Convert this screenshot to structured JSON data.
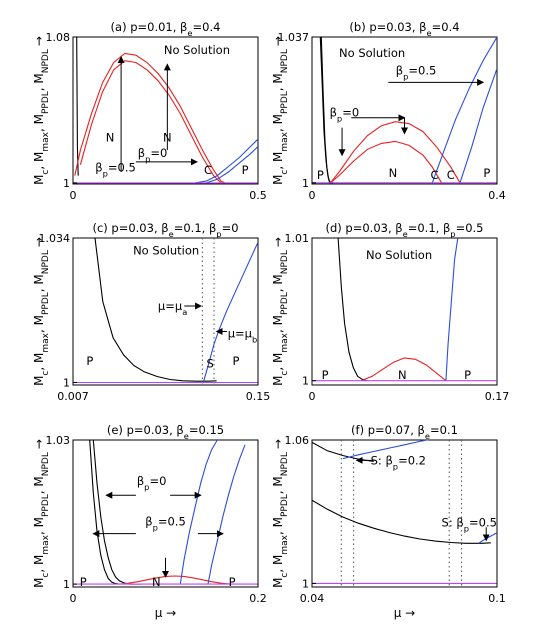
{
  "figure": {
    "ylabel_text": "M",
    "ylabel_subs": [
      "c",
      "max",
      "PPDL",
      "NPDL"
    ],
    "ylabel_arrow": "→",
    "colors": {
      "axis": "#000000",
      "black": "#000000",
      "red": "#e8201f",
      "blue": "#2b4de0",
      "magenta": "#c040ff"
    }
  },
  "chart_data": [
    {
      "type": "line",
      "panel": "a",
      "title": "(a) p=0.01, β_e=0.4",
      "xlabel": "",
      "xlim": [
        0,
        0.5
      ],
      "ylim": [
        0.9994,
        1.08
      ],
      "xticks": [
        "0",
        "0.5"
      ],
      "yticks": [
        "1",
        "1.08"
      ],
      "series": [
        {
          "color": "black",
          "x": [
            0.01,
            0.012,
            0.014
          ],
          "y": [
            1.08,
            1.02,
            1.004
          ]
        },
        {
          "color": "red",
          "x": [
            0.005,
            0.02,
            0.05,
            0.08,
            0.11,
            0.14,
            0.17,
            0.2,
            0.23,
            0.26,
            0.29,
            0.32,
            0.35,
            0.38,
            0.4,
            0.41
          ],
          "y": [
            1.004,
            1.018,
            1.038,
            1.055,
            1.066,
            1.071,
            1.07,
            1.066,
            1.06,
            1.052,
            1.042,
            1.03,
            1.018,
            1.007,
            1.001,
            1.0
          ]
        },
        {
          "color": "red",
          "x": [
            0.02,
            0.05,
            0.08,
            0.11,
            0.14,
            0.17,
            0.2,
            0.23,
            0.26,
            0.29,
            0.32,
            0.35,
            0.38,
            0.4
          ],
          "y": [
            1.01,
            1.032,
            1.05,
            1.062,
            1.067,
            1.066,
            1.062,
            1.056,
            1.048,
            1.038,
            1.026,
            1.014,
            1.004,
            1.0
          ]
        },
        {
          "color": "blue",
          "x": [
            0.33,
            0.36,
            0.39,
            0.42,
            0.45,
            0.48,
            0.5
          ],
          "y": [
            1.0,
            1.001,
            1.004,
            1.009,
            1.014,
            1.02,
            1.024
          ]
        },
        {
          "color": "blue",
          "x": [
            0.36,
            0.39,
            0.42,
            0.45,
            0.48,
            0.5
          ],
          "y": [
            1.0,
            1.002,
            1.006,
            1.011,
            1.016,
            1.02
          ]
        },
        {
          "color": "magenta",
          "x": [
            0,
            0.5
          ],
          "y": [
            1.0,
            1.0
          ]
        }
      ],
      "annotations": [
        {
          "text": "No Solution",
          "x": 0.335,
          "y": 1.073
        },
        {
          "text": "N",
          "x": 0.1,
          "y": 1.025
        },
        {
          "text": "N",
          "x": 0.255,
          "y": 1.025
        },
        {
          "text": "C",
          "x": 0.365,
          "y": 1.007
        },
        {
          "text": "P",
          "x": 0.465,
          "y": 1.007
        },
        {
          "text": "β_p=0.5",
          "x": 0.115,
          "y": 1.0085
        },
        {
          "text": "β_p=0",
          "x": 0.215,
          "y": 1.0165
        }
      ],
      "arrows": [
        {
          "x1": 0.13,
          "y1": 1.006,
          "x2": 0.13,
          "y2": 1.069
        },
        {
          "x1": 0.255,
          "y1": 1.018,
          "x2": 0.255,
          "y2": 1.065
        },
        {
          "x1": 0.17,
          "y1": 1.0115,
          "x2": 0.335,
          "y2": 1.0115
        }
      ]
    },
    {
      "type": "line",
      "panel": "b",
      "title": "(b) p=0.03, β_e=0.4",
      "xlabel": "",
      "xlim": [
        0,
        0.4
      ],
      "ylim": [
        0.9997,
        1.037
      ],
      "xticks": [
        "0",
        "0.4"
      ],
      "yticks": [
        "1",
        "1.037"
      ],
      "series": [
        {
          "color": "black",
          "x": [
            0.018,
            0.022,
            0.026,
            0.03,
            0.034,
            0.038,
            0.042,
            0.046
          ],
          "y": [
            1.037,
            1.025,
            1.013,
            1.006,
            1.002,
            1.0,
            1.0,
            1.0
          ]
        },
        {
          "color": "black",
          "x": [
            0.02,
            0.024,
            0.028,
            0.032,
            0.036,
            0.04,
            0.044
          ],
          "y": [
            1.037,
            1.023,
            1.011,
            1.004,
            1.001,
            1.0,
            1.0
          ]
        },
        {
          "color": "red",
          "x": [
            0.04,
            0.06,
            0.09,
            0.12,
            0.15,
            0.18,
            0.21,
            0.24,
            0.27,
            0.3,
            0.32
          ],
          "y": [
            1.0,
            1.003,
            1.008,
            1.012,
            1.0145,
            1.0155,
            1.015,
            1.013,
            1.009,
            1.004,
            1.0
          ]
        },
        {
          "color": "red",
          "x": [
            0.04,
            0.06,
            0.09,
            0.12,
            0.15,
            0.18,
            0.21,
            0.24,
            0.26,
            0.28
          ],
          "y": [
            1.0,
            1.002,
            1.0055,
            1.0085,
            1.01,
            1.0105,
            1.0095,
            1.007,
            1.004,
            1.0
          ]
        },
        {
          "color": "blue",
          "x": [
            0.26,
            0.285,
            0.31,
            0.34,
            0.37,
            0.4
          ],
          "y": [
            1.0,
            1.008,
            1.016,
            1.024,
            1.031,
            1.037
          ]
        },
        {
          "color": "blue",
          "x": [
            0.32,
            0.345,
            0.37,
            0.4
          ],
          "y": [
            1.0,
            1.009,
            1.019,
            1.029
          ]
        },
        {
          "color": "magenta",
          "x": [
            0,
            0.4
          ],
          "y": [
            1.0,
            1.0
          ]
        }
      ],
      "annotations": [
        {
          "text": "No Solution",
          "x": 0.13,
          "y": 1.033
        },
        {
          "text": "β_p=0.5",
          "x": 0.225,
          "y": 1.0285
        },
        {
          "text": "β_p=0",
          "x": 0.07,
          "y": 1.0178
        },
        {
          "text": "P",
          "x": 0.018,
          "y": 1.002
        },
        {
          "text": "N",
          "x": 0.175,
          "y": 1.0025
        },
        {
          "text": "C",
          "x": 0.265,
          "y": 1.002
        },
        {
          "text": "C",
          "x": 0.3,
          "y": 1.002
        },
        {
          "text": "P",
          "x": 0.378,
          "y": 1.0025
        }
      ],
      "arrows": [
        {
          "x1": 0.165,
          "y1": 1.0255,
          "x2": 0.37,
          "y2": 1.0255
        },
        {
          "x1": 0.065,
          "y1": 1.014,
          "x2": 0.065,
          "y2": 1.007
        },
        {
          "x1": 0.085,
          "y1": 1.0165,
          "x2": 0.2,
          "y2": 1.0165
        },
        {
          "x1": 0.2,
          "y1": 1.0165,
          "x2": 0.2,
          "y2": 1.0125
        }
      ]
    },
    {
      "type": "line",
      "panel": "c",
      "title": "(c) p=0.03, β_e=0.1, β_p=0",
      "xlabel": "",
      "xlim": [
        0.007,
        0.15
      ],
      "ylim": [
        0.9994,
        1.034
      ],
      "xticks": [
        "0.007",
        "0.15"
      ],
      "yticks": [
        "1",
        "1.034"
      ],
      "series": [
        {
          "color": "black",
          "x": [
            0.024,
            0.03,
            0.038,
            0.046,
            0.054,
            0.062,
            0.072,
            0.082,
            0.092,
            0.102,
            0.112,
            0.118
          ],
          "y": [
            1.034,
            1.019,
            1.0105,
            1.0065,
            1.004,
            1.0025,
            1.0014,
            1.0007,
            1.0004,
            1.0003,
            1.0003,
            1.0004
          ]
        },
        {
          "color": "blue",
          "x": [
            0.108,
            0.112,
            0.116,
            0.12,
            0.126,
            0.132,
            0.138,
            0.144,
            0.15
          ],
          "y": [
            1.0003,
            1.0045,
            1.009,
            1.0125,
            1.017,
            1.021,
            1.025,
            1.029,
            1.033
          ]
        },
        {
          "color": "magenta",
          "x": [
            0.007,
            0.15
          ],
          "y": [
            1.0,
            1.0
          ]
        }
      ],
      "annotations": [
        {
          "text": "No Solution",
          "x": 0.079,
          "y": 1.031
        },
        {
          "text": "μ=μ_a",
          "x": 0.084,
          "y": 1.018
        },
        {
          "text": "μ=μ_b",
          "x": 0.138,
          "y": 1.0115
        },
        {
          "text": "P",
          "x": 0.02,
          "y": 1.005
        },
        {
          "text": "S",
          "x": 0.113,
          "y": 1.0045
        },
        {
          "text": "P",
          "x": 0.133,
          "y": 1.005
        }
      ],
      "vlines": [
        0.107,
        0.116
      ],
      "arrows": [
        {
          "x1": 0.093,
          "y1": 1.018,
          "x2": 0.106,
          "y2": 1.018
        },
        {
          "x1": 0.126,
          "y1": 1.012,
          "x2": 0.118,
          "y2": 1.012
        }
      ]
    },
    {
      "type": "line",
      "panel": "d",
      "title": "(d) p=0.03, β_e=0.1, β_p=0.5",
      "xlabel": "",
      "xlim": [
        0,
        0.17
      ],
      "ylim": [
        0.9997,
        1.01
      ],
      "xticks": [
        "0",
        "0.17"
      ],
      "yticks": [
        "1",
        "1.01"
      ],
      "series": [
        {
          "color": "black",
          "x": [
            0.024,
            0.027,
            0.03,
            0.034,
            0.038,
            0.042,
            0.046,
            0.05
          ],
          "y": [
            1.01,
            1.0065,
            1.004,
            1.002,
            1.0009,
            1.0003,
            1.0001,
            1.0
          ]
        },
        {
          "color": "red",
          "x": [
            0.045,
            0.055,
            0.065,
            0.075,
            0.085,
            0.095,
            0.105,
            0.115,
            0.123
          ],
          "y": [
            1.0,
            1.0003,
            1.0008,
            1.0013,
            1.0016,
            1.0015,
            1.0011,
            1.0005,
            1.0
          ]
        },
        {
          "color": "blue",
          "x": [
            0.123,
            0.125,
            0.128,
            0.131,
            0.134
          ],
          "y": [
            1.0,
            1.0025,
            1.0055,
            1.0085,
            1.01
          ]
        },
        {
          "color": "magenta",
          "x": [
            0,
            0.17
          ],
          "y": [
            1.0,
            1.0
          ]
        }
      ],
      "annotations": [
        {
          "text": "No Solution",
          "x": 0.08,
          "y": 1.0088
        },
        {
          "text": "P",
          "x": 0.012,
          "y": 1.0004
        },
        {
          "text": "N",
          "x": 0.083,
          "y": 1.0004
        },
        {
          "text": "P",
          "x": 0.143,
          "y": 1.0004
        }
      ]
    },
    {
      "type": "line",
      "panel": "e",
      "title": "(e) p=0.03, β_e=0.15",
      "xlabel": "μ →",
      "xlim": [
        0,
        0.2
      ],
      "ylim": [
        0.9994,
        1.03
      ],
      "xticks": [
        "0",
        "0.2"
      ],
      "yticks": [
        "1",
        "1.03"
      ],
      "series": [
        {
          "color": "black",
          "x": [
            0.018,
            0.022,
            0.026,
            0.03,
            0.034,
            0.038,
            0.042,
            0.046,
            0.05
          ],
          "y": [
            1.03,
            1.019,
            1.011,
            1.006,
            1.003,
            1.0012,
            1.0004,
            1.0001,
            1.0
          ]
        },
        {
          "color": "black",
          "x": [
            0.022,
            0.026,
            0.03,
            0.034,
            0.038,
            0.042,
            0.046,
            0.05,
            0.056,
            0.062,
            0.068,
            0.074
          ],
          "y": [
            1.03,
            1.021,
            1.014,
            1.009,
            1.0055,
            1.003,
            1.0015,
            1.0007,
            1.0002,
            1.0,
            1.0,
            1.0
          ]
        },
        {
          "color": "red",
          "x": [
            0.05,
            0.06,
            0.07,
            0.08,
            0.09,
            0.1,
            0.11,
            0.12,
            0.13,
            0.14,
            0.15,
            0.16,
            0.17
          ],
          "y": [
            1.0,
            1.0002,
            1.0005,
            1.0009,
            1.0013,
            1.0016,
            1.0017,
            1.0016,
            1.0013,
            1.0009,
            1.0005,
            1.0002,
            1.0
          ]
        },
        {
          "color": "blue",
          "x": [
            0.116,
            0.12,
            0.126,
            0.132,
            0.138,
            0.144,
            0.15,
            0.156
          ],
          "y": [
            1.0,
            1.005,
            1.011,
            1.016,
            1.021,
            1.025,
            1.028,
            1.03
          ]
        },
        {
          "color": "blue",
          "x": [
            0.146,
            0.15,
            0.156,
            0.162,
            0.168,
            0.174,
            0.18,
            0.186
          ],
          "y": [
            1.0,
            1.004,
            1.009,
            1.014,
            1.0185,
            1.0225,
            1.026,
            1.029
          ]
        },
        {
          "color": "magenta",
          "x": [
            0,
            0.2
          ],
          "y": [
            1.0,
            1.0
          ]
        }
      ],
      "annotations": [
        {
          "text": "β_p=0",
          "x": 0.085,
          "y": 1.0215
        },
        {
          "text": "β_p=0.5",
          "x": 0.1,
          "y": 1.013
        },
        {
          "text": "P",
          "x": 0.011,
          "y": 1.0004
        },
        {
          "text": "N",
          "x": 0.09,
          "y": 1.0004
        },
        {
          "text": "P",
          "x": 0.172,
          "y": 1.0004
        }
      ],
      "arrows": [
        {
          "x1": 0.068,
          "y1": 1.0185,
          "x2": 0.036,
          "y2": 1.0185
        },
        {
          "x1": 0.105,
          "y1": 1.0185,
          "x2": 0.138,
          "y2": 1.0185
        },
        {
          "x1": 0.068,
          "y1": 1.0105,
          "x2": 0.022,
          "y2": 1.0105
        },
        {
          "x1": 0.135,
          "y1": 1.0105,
          "x2": 0.162,
          "y2": 1.0105
        },
        {
          "x1": 0.1,
          "y1": 1.0055,
          "x2": 0.1,
          "y2": 1.0015
        }
      ]
    },
    {
      "type": "line",
      "panel": "f",
      "title": "(f) p=0.07, β_e=0.1",
      "xlabel": "μ →",
      "xlim": [
        0.04,
        0.1
      ],
      "ylim": [
        0.9985,
        1.06
      ],
      "xticks": [
        "0.04",
        "0.1"
      ],
      "yticks": [
        "1",
        "1.06"
      ],
      "series": [
        {
          "color": "black",
          "x": [
            0.04,
            0.045,
            0.05,
            0.055,
            0.06
          ],
          "y": [
            1.059,
            1.0555,
            1.0535,
            1.052,
            1.051
          ]
        },
        {
          "color": "blue",
          "x": [
            0.05,
            0.055,
            0.06,
            0.065,
            0.07,
            0.075,
            0.08,
            0.085,
            0.088
          ],
          "y": [
            1.0522,
            1.0538,
            1.0552,
            1.0566,
            1.058,
            1.0594,
            1.0607,
            1.0618,
            1.0625
          ]
        },
        {
          "color": "black",
          "x": [
            0.04,
            0.045,
            0.05,
            0.055,
            0.06,
            0.065,
            0.07,
            0.075,
            0.08,
            0.085,
            0.09,
            0.095,
            0.098
          ],
          "y": [
            1.0348,
            1.031,
            1.0278,
            1.0252,
            1.0231,
            1.0213,
            1.0198,
            1.0186,
            1.0177,
            1.0171,
            1.0168,
            1.0168,
            1.017
          ]
        },
        {
          "color": "blue",
          "x": [
            0.094,
            0.096,
            0.098,
            0.1
          ],
          "y": [
            1.0168,
            1.0184,
            1.0198,
            1.0212
          ]
        },
        {
          "color": "magenta",
          "x": [
            0.04,
            0.1
          ],
          "y": [
            1.0,
            1.0
          ]
        }
      ],
      "annotations": [
        {
          "text": "S: β_p=0.2",
          "x": 0.068,
          "y": 1.0515
        },
        {
          "text": "S: β_p=0.5",
          "x": 0.091,
          "y": 1.0255
        }
      ],
      "vlines": [
        0.0495,
        0.0535,
        0.0845,
        0.0885
      ],
      "arrows": [
        {
          "x1": 0.06,
          "y1": 1.0515,
          "x2": 0.0545,
          "y2": 1.0515
        },
        {
          "x1": 0.0965,
          "y1": 1.0235,
          "x2": 0.0965,
          "y2": 1.018
        }
      ]
    }
  ]
}
